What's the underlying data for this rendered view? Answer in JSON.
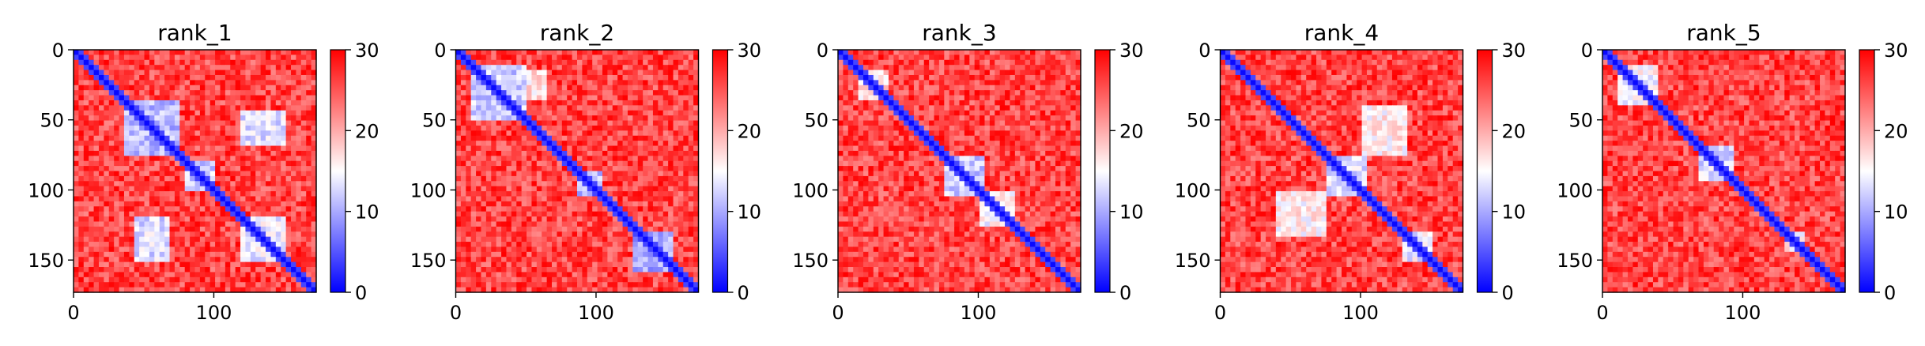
{
  "chart_data": [
    {
      "type": "heatmap",
      "title": "rank_1",
      "n": 173,
      "xticks": [
        0,
        100
      ],
      "yticks": [
        0,
        50,
        100,
        150
      ],
      "colorbar": {
        "min": 0,
        "max": 30,
        "ticks": [
          "30",
          "20",
          "10",
          "0"
        ],
        "colormap": "bwr"
      },
      "blocks": [
        {
          "r": [
            35,
            75
          ],
          "c": [
            35,
            75
          ],
          "v": 8
        },
        {
          "r": [
            45,
            70
          ],
          "c": [
            120,
            150
          ],
          "v": 10
        },
        {
          "r": [
            120,
            150
          ],
          "c": [
            45,
            70
          ],
          "v": 10
        },
        {
          "r": [
            120,
            150
          ],
          "c": [
            120,
            150
          ],
          "v": 11
        },
        {
          "r": [
            80,
            100
          ],
          "c": [
            80,
            100
          ],
          "v": 9
        }
      ]
    },
    {
      "type": "heatmap",
      "title": "rank_2",
      "n": 173,
      "xticks": [
        0,
        100
      ],
      "yticks": [
        0,
        50,
        100,
        150
      ],
      "colorbar": {
        "min": 0,
        "max": 30,
        "ticks": [
          "30",
          "20",
          "10",
          "0"
        ],
        "colormap": "bwr"
      },
      "blocks": [
        {
          "r": [
            10,
            50
          ],
          "c": [
            10,
            50
          ],
          "v": 9
        },
        {
          "r": [
            15,
            35
          ],
          "c": [
            45,
            65
          ],
          "v": 14
        },
        {
          "r": [
            85,
            105
          ],
          "c": [
            85,
            105
          ],
          "v": 8
        },
        {
          "r": [
            130,
            160
          ],
          "c": [
            125,
            155
          ],
          "v": 7
        }
      ]
    },
    {
      "type": "heatmap",
      "title": "rank_3",
      "n": 173,
      "xticks": [
        0,
        100
      ],
      "yticks": [
        0,
        50,
        100,
        150
      ],
      "colorbar": {
        "min": 0,
        "max": 30,
        "ticks": [
          "30",
          "20",
          "10",
          "0"
        ],
        "colormap": "bwr"
      },
      "blocks": [
        {
          "r": [
            75,
            105
          ],
          "c": [
            75,
            105
          ],
          "v": 9
        },
        {
          "r": [
            100,
            125
          ],
          "c": [
            100,
            125
          ],
          "v": 12
        },
        {
          "r": [
            15,
            35
          ],
          "c": [
            15,
            35
          ],
          "v": 14
        }
      ]
    },
    {
      "type": "heatmap",
      "title": "rank_4",
      "n": 173,
      "xticks": [
        0,
        100
      ],
      "yticks": [
        0,
        50,
        100,
        150
      ],
      "colorbar": {
        "min": 0,
        "max": 30,
        "ticks": [
          "30",
          "20",
          "10",
          "0"
        ],
        "colormap": "bwr"
      },
      "blocks": [
        {
          "r": [
            75,
            105
          ],
          "c": [
            75,
            105
          ],
          "v": 10
        },
        {
          "r": [
            40,
            75
          ],
          "c": [
            100,
            135
          ],
          "v": 13
        },
        {
          "r": [
            100,
            135
          ],
          "c": [
            40,
            75
          ],
          "v": 13
        },
        {
          "r": [
            130,
            150
          ],
          "c": [
            130,
            150
          ],
          "v": 11
        }
      ]
    },
    {
      "type": "heatmap",
      "title": "rank_5",
      "n": 173,
      "xticks": [
        0,
        100
      ],
      "yticks": [
        0,
        50,
        100,
        150
      ],
      "colorbar": {
        "min": 0,
        "max": 30,
        "ticks": [
          "30",
          "20",
          "10",
          "0"
        ],
        "colormap": "bwr"
      },
      "blocks": [
        {
          "r": [
            10,
            40
          ],
          "c": [
            10,
            40
          ],
          "v": 12
        },
        {
          "r": [
            70,
            95
          ],
          "c": [
            70,
            95
          ],
          "v": 10
        },
        {
          "r": [
            130,
            145
          ],
          "c": [
            130,
            145
          ],
          "v": 13
        }
      ]
    }
  ]
}
